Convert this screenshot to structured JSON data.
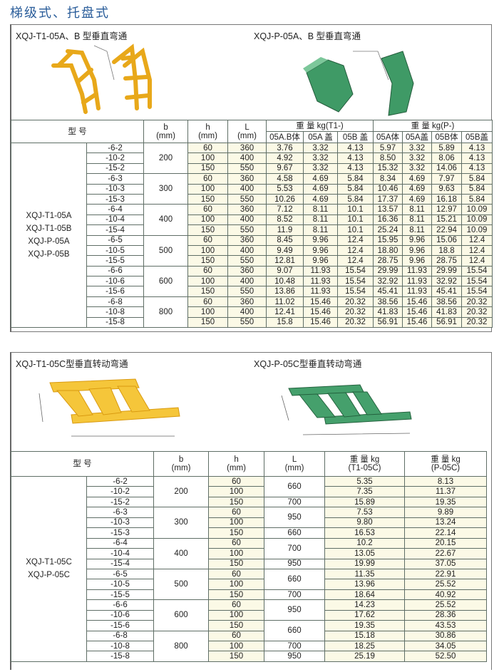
{
  "heading": "梯级式、托盘式",
  "section1": {
    "left_caption": "XQJ-T1-05A、B 型垂直弯通",
    "right_caption": "XQJ-P-05A、B 型垂直弯通",
    "header": {
      "model": "型 号",
      "b": "b\n(mm)",
      "h": "h\n(mm)",
      "L": "L\n(mm)",
      "t1_group": "重 量 kg(T1-)",
      "p_group": "重 量 kg(P-)",
      "t1_cols": [
        "05A.B体",
        "05A 盖",
        "05B 盖"
      ],
      "p_cols": [
        "05A体",
        "05A盖",
        "05B体",
        "05B盖"
      ]
    },
    "model_names": [
      "XQJ-T1-05A",
      "XQJ-T1-05B",
      "XQJ-P-05A",
      "XQJ-P-05B"
    ],
    "groups": [
      {
        "b": "200",
        "rows": [
          {
            "s": "-6-2",
            "h": "60",
            "L": "360",
            "t1": [
              "3.76",
              "3.32",
              "4.13"
            ],
            "p": [
              "5.97",
              "3.32",
              "5.89",
              "4.13"
            ]
          },
          {
            "s": "-10-2",
            "h": "100",
            "L": "400",
            "t1": [
              "4.92",
              "3.32",
              "4.13"
            ],
            "p": [
              "8.50",
              "3.32",
              "8.06",
              "4.13"
            ]
          },
          {
            "s": "-15-2",
            "h": "150",
            "L": "550",
            "t1": [
              "9.67",
              "3.32",
              "4.13"
            ],
            "p": [
              "15.32",
              "3.32",
              "14.06",
              "4.13"
            ]
          }
        ]
      },
      {
        "b": "300",
        "rows": [
          {
            "s": "-6-3",
            "h": "60",
            "L": "360",
            "t1": [
              "4.58",
              "4.69",
              "5.84"
            ],
            "p": [
              "8.34",
              "4.69",
              "7.97",
              "5.84"
            ]
          },
          {
            "s": "-10-3",
            "h": "100",
            "L": "400",
            "t1": [
              "5.53",
              "4.69",
              "5.84"
            ],
            "p": [
              "10.46",
              "4.69",
              "9.63",
              "5.84"
            ]
          },
          {
            "s": "-15-3",
            "h": "150",
            "L": "550",
            "t1": [
              "10.26",
              "4.69",
              "5.84"
            ],
            "p": [
              "17.37",
              "4.69",
              "16.18",
              "5.84"
            ]
          }
        ]
      },
      {
        "b": "400",
        "rows": [
          {
            "s": "-6-4",
            "h": "60",
            "L": "360",
            "t1": [
              "7.12",
              "8.11",
              "10.1"
            ],
            "p": [
              "13.57",
              "8.11",
              "12.97",
              "10.09"
            ]
          },
          {
            "s": "-10-4",
            "h": "100",
            "L": "400",
            "t1": [
              "8.52",
              "8.11",
              "10.1"
            ],
            "p": [
              "16.36",
              "8.11",
              "15.21",
              "10.09"
            ]
          },
          {
            "s": "-15-4",
            "h": "150",
            "L": "550",
            "t1": [
              "11.9",
              "8.11",
              "10.1"
            ],
            "p": [
              "25.24",
              "8.11",
              "22.94",
              "10.09"
            ]
          }
        ]
      },
      {
        "b": "500",
        "rows": [
          {
            "s": "-6-5",
            "h": "60",
            "L": "360",
            "t1": [
              "8.45",
              "9.96",
              "12.4"
            ],
            "p": [
              "15.95",
              "9.96",
              "15.06",
              "12.4"
            ]
          },
          {
            "s": "-10-5",
            "h": "100",
            "L": "400",
            "t1": [
              "9.49",
              "9.96",
              "12.4"
            ],
            "p": [
              "18.80",
              "9.96",
              "18.8",
              "12.4"
            ]
          },
          {
            "s": "-15-5",
            "h": "150",
            "L": "550",
            "t1": [
              "12.81",
              "9.96",
              "12.4"
            ],
            "p": [
              "28.75",
              "9.96",
              "28.75",
              "12.4"
            ]
          }
        ]
      },
      {
        "b": "600",
        "rows": [
          {
            "s": "-6-6",
            "h": "60",
            "L": "360",
            "t1": [
              "9.07",
              "11.93",
              "15.54"
            ],
            "p": [
              "29.99",
              "11.93",
              "29.99",
              "15.54"
            ]
          },
          {
            "s": "-10-6",
            "h": "100",
            "L": "400",
            "t1": [
              "10.48",
              "11.93",
              "15.54"
            ],
            "p": [
              "32.92",
              "11.93",
              "32.92",
              "15.54"
            ]
          },
          {
            "s": "-15-6",
            "h": "150",
            "L": "550",
            "t1": [
              "13.86",
              "11.93",
              "15.54"
            ],
            "p": [
              "45.41",
              "11.93",
              "45.41",
              "15.54"
            ]
          }
        ]
      },
      {
        "b": "800",
        "rows": [
          {
            "s": "-6-8",
            "h": "60",
            "L": "360",
            "t1": [
              "11.02",
              "15.46",
              "20.32"
            ],
            "p": [
              "38.56",
              "15.46",
              "38.56",
              "20.32"
            ]
          },
          {
            "s": "-10-8",
            "h": "100",
            "L": "400",
            "t1": [
              "12.41",
              "15.46",
              "20.32"
            ],
            "p": [
              "41.83",
              "15.46",
              "41.83",
              "20.32"
            ]
          },
          {
            "s": "-15-8",
            "h": "150",
            "L": "550",
            "t1": [
              "15.8",
              "15.46",
              "20.32"
            ],
            "p": [
              "56.91",
              "15.46",
              "56.91",
              "20.32"
            ]
          }
        ]
      }
    ]
  },
  "section2": {
    "left_caption": "XQJ-T1-05C型垂直转动弯通",
    "right_caption": "XQJ-P-05C型垂直转动弯通",
    "header": {
      "model": "型 号",
      "b": "b\n(mm)",
      "h": "h\n(mm)",
      "L": "L\n(mm)",
      "t1": "重 量 kg\n(T1-05C)",
      "p": "重 量 kg\n(P-05C)"
    },
    "model_names": [
      "XQJ-T1-05C",
      "XQJ-P-05C"
    ],
    "groups": [
      {
        "b": "200",
        "rows": [
          {
            "s": "-6-2",
            "h": "60",
            "L": "660",
            "t1": "5.35",
            "p": "8.13"
          },
          {
            "s": "-10-2",
            "h": "100",
            "L": "660",
            "t1": "7.35",
            "p": "11.37"
          },
          {
            "s": "-15-2",
            "h": "150",
            "L": "700",
            "t1": "15.89",
            "p": "19.35"
          }
        ]
      },
      {
        "b": "300",
        "rows": [
          {
            "s": "-6-3",
            "h": "60",
            "L": "950",
            "t1": "7.53",
            "p": "9.89"
          },
          {
            "s": "-10-3",
            "h": "100",
            "L": "950",
            "t1": "9.80",
            "p": "13.24"
          },
          {
            "s": "-15-3",
            "h": "150",
            "L": "660",
            "t1": "16.53",
            "p": "22.14"
          }
        ]
      },
      {
        "b": "400",
        "rows": [
          {
            "s": "-6-4",
            "h": "60",
            "L": "700",
            "t1": "10.2",
            "p": "20.15"
          },
          {
            "s": "-10-4",
            "h": "100",
            "L": "700",
            "t1": "13.05",
            "p": "22.67"
          },
          {
            "s": "-15-4",
            "h": "150",
            "L": "950",
            "t1": "19.99",
            "p": "37.05"
          }
        ]
      },
      {
        "b": "500",
        "rows": [
          {
            "s": "-6-5",
            "h": "60",
            "L": "660",
            "t1": "11.35",
            "p": "22.91"
          },
          {
            "s": "-10-5",
            "h": "100",
            "L": "660",
            "t1": "13.96",
            "p": "25.52"
          },
          {
            "s": "-15-5",
            "h": "150",
            "L": "700",
            "t1": "18.64",
            "p": "40.92"
          }
        ]
      },
      {
        "b": "600",
        "rows": [
          {
            "s": "-6-6",
            "h": "60",
            "L": "950",
            "t1": "14.23",
            "p": "25.52"
          },
          {
            "s": "-10-6",
            "h": "100",
            "L": "950",
            "t1": "17.62",
            "p": "28.36"
          },
          {
            "s": "-15-6",
            "h": "150",
            "L": "660",
            "t1": "19.35",
            "p": "43.53"
          }
        ]
      },
      {
        "b": "800",
        "rows": [
          {
            "s": "-6-8",
            "h": "60",
            "L": "660",
            "t1": "15.18",
            "p": "30.86"
          },
          {
            "s": "-10-8",
            "h": "100",
            "L": "700",
            "t1": "18.25",
            "p": "34.05"
          },
          {
            "s": "-15-8",
            "h": "150",
            "L": "950",
            "t1": "25.19",
            "p": "52.50"
          }
        ]
      }
    ]
  },
  "colors": {
    "heading": "#2a5d9a",
    "ladder": "#f2c230",
    "tray": "#3f9a66",
    "cell_fill": "#fbf9e6"
  }
}
